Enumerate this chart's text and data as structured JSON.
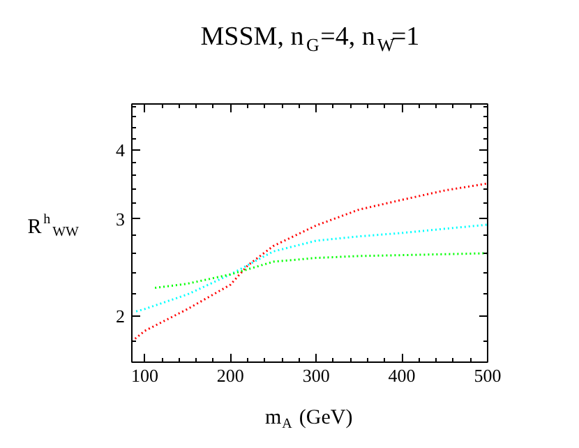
{
  "chart_data": {
    "type": "line",
    "title": "MSSM, n$_{G}$=4, n$_{W}$=1",
    "xlabel": "m$_{A}$ (GeV)",
    "ylabel": "R$^{h}$$_{WW}$",
    "log": "y",
    "xlim": [
      85,
      500
    ],
    "ylim": [
      1.65,
      4.85
    ],
    "xticks": [
      100,
      200,
      300,
      400,
      500
    ],
    "yticks": [
      2,
      3,
      4
    ],
    "grid": false,
    "line_style": "dotted",
    "marker": "none",
    "series": [
      {
        "color": "#ff0000",
        "x": [
          85,
          100,
          150,
          200,
          220,
          250,
          300,
          350,
          400,
          450,
          500
        ],
        "values": [
          1.8,
          1.88,
          2.06,
          2.28,
          2.47,
          2.68,
          2.92,
          3.12,
          3.25,
          3.38,
          3.48
        ]
      },
      {
        "color": "#00ffff",
        "x": [
          90,
          100,
          150,
          200,
          250,
          300,
          350,
          400,
          450,
          500
        ],
        "values": [
          2.04,
          2.06,
          2.19,
          2.38,
          2.62,
          2.74,
          2.79,
          2.83,
          2.88,
          2.93
        ]
      },
      {
        "color": "#00ff00",
        "x": [
          112,
          150,
          200,
          250,
          300,
          350,
          400,
          450,
          500
        ],
        "values": [
          2.25,
          2.29,
          2.38,
          2.51,
          2.55,
          2.57,
          2.58,
          2.59,
          2.6
        ]
      }
    ]
  }
}
